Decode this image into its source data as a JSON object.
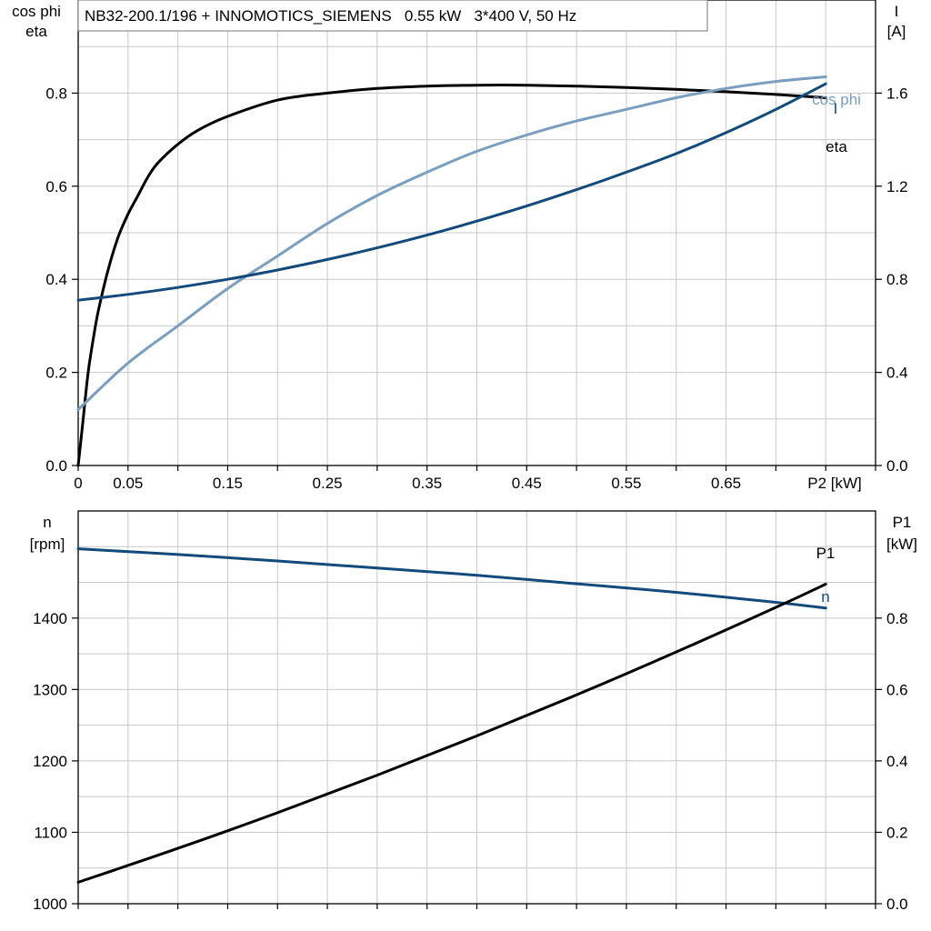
{
  "header": {
    "title": "NB32-200.1/196 + INNOMOTICS_SIEMENS   0.55 kW   3*400 V, 50 Hz"
  },
  "colors": {
    "eta": "#000000",
    "cos_phi": "#7a9ebf",
    "I": "#134a7c",
    "n": "#134a7c",
    "P1": "#000000"
  },
  "chart_data": [
    {
      "type": "line",
      "panel": "top",
      "xlabel": "P2 [kW]",
      "ylabel_left": [
        "cos phi",
        "eta"
      ],
      "ylabel_right": [
        "I",
        "[A]"
      ],
      "x_tick_labels": [
        "0",
        "0.05",
        "0.15",
        "0.25",
        "0.35",
        "0.45",
        "0.55",
        "0.65"
      ],
      "x_ticks": [
        0,
        0.05,
        0.15,
        0.25,
        0.35,
        0.45,
        0.55,
        0.65
      ],
      "xlim": [
        0,
        0.8
      ],
      "ylim_left": [
        0,
        1.0
      ],
      "y_ticks_left": [
        {
          "v": 0.0,
          "label": "0.0"
        },
        {
          "v": 0.2,
          "label": "0.2"
        },
        {
          "v": 0.4,
          "label": "0.4"
        },
        {
          "v": 0.6,
          "label": "0.6"
        },
        {
          "v": 0.8,
          "label": "0.8"
        }
      ],
      "ylim_right": [
        0,
        2.0
      ],
      "y_ticks_right": [
        {
          "v": 0.0,
          "label": "0.0"
        },
        {
          "v": 0.4,
          "label": "0.4"
        },
        {
          "v": 0.8,
          "label": "0.8"
        },
        {
          "v": 1.2,
          "label": "1.2"
        },
        {
          "v": 1.6,
          "label": "1.6"
        }
      ],
      "grid": true,
      "series": [
        {
          "name": "eta",
          "axis": "left",
          "x": [
            0,
            0.005,
            0.01,
            0.015,
            0.02,
            0.03,
            0.04,
            0.05,
            0.06,
            0.07,
            0.08,
            0.1,
            0.12,
            0.15,
            0.2,
            0.25,
            0.3,
            0.35,
            0.4,
            0.45,
            0.5,
            0.55,
            0.6,
            0.65,
            0.7,
            0.75
          ],
          "y": [
            0,
            0.1,
            0.2,
            0.27,
            0.33,
            0.42,
            0.49,
            0.54,
            0.58,
            0.62,
            0.65,
            0.69,
            0.72,
            0.75,
            0.785,
            0.8,
            0.81,
            0.815,
            0.817,
            0.817,
            0.815,
            0.812,
            0.808,
            0.803,
            0.797,
            0.79
          ]
        },
        {
          "name": "cos phi",
          "axis": "left",
          "x": [
            0,
            0.05,
            0.1,
            0.15,
            0.2,
            0.25,
            0.3,
            0.35,
            0.4,
            0.45,
            0.5,
            0.55,
            0.6,
            0.65,
            0.7,
            0.75
          ],
          "y": [
            0.12,
            0.22,
            0.3,
            0.38,
            0.45,
            0.52,
            0.58,
            0.63,
            0.675,
            0.71,
            0.74,
            0.765,
            0.79,
            0.81,
            0.825,
            0.835
          ]
        },
        {
          "name": "I",
          "axis": "right",
          "x": [
            0,
            0.05,
            0.1,
            0.15,
            0.2,
            0.25,
            0.3,
            0.35,
            0.4,
            0.45,
            0.5,
            0.55,
            0.6,
            0.65,
            0.7,
            0.75
          ],
          "y": [
            0.71,
            0.735,
            0.765,
            0.8,
            0.84,
            0.885,
            0.935,
            0.99,
            1.05,
            1.115,
            1.185,
            1.26,
            1.34,
            1.43,
            1.53,
            1.64
          ]
        }
      ]
    },
    {
      "type": "line",
      "panel": "bottom",
      "ylabel_left": [
        "n",
        "[rpm]"
      ],
      "ylabel_right": [
        "P1",
        "[kW]"
      ],
      "xlim": [
        0,
        0.8
      ],
      "ylim_left": [
        1000,
        1550
      ],
      "y_ticks_left": [
        {
          "v": 1000,
          "label": "1000"
        },
        {
          "v": 1100,
          "label": "1100"
        },
        {
          "v": 1200,
          "label": "1200"
        },
        {
          "v": 1300,
          "label": "1300"
        },
        {
          "v": 1400,
          "label": "1400"
        }
      ],
      "ylim_right": [
        0,
        1.1
      ],
      "y_ticks_right": [
        {
          "v": 0.0,
          "label": "0.0"
        },
        {
          "v": 0.2,
          "label": "0.2"
        },
        {
          "v": 0.4,
          "label": "0.4"
        },
        {
          "v": 0.6,
          "label": "0.6"
        },
        {
          "v": 0.8,
          "label": "0.8"
        }
      ],
      "grid": true,
      "series": [
        {
          "name": "n",
          "axis": "left",
          "x": [
            0,
            0.1,
            0.2,
            0.3,
            0.4,
            0.5,
            0.6,
            0.7,
            0.75
          ],
          "y": [
            1497,
            1489,
            1480,
            1470,
            1460,
            1448,
            1436,
            1422,
            1414
          ]
        },
        {
          "name": "P1",
          "axis": "right",
          "x": [
            0,
            0.1,
            0.2,
            0.3,
            0.4,
            0.5,
            0.6,
            0.7,
            0.75
          ],
          "y": [
            0.06,
            0.155,
            0.255,
            0.36,
            0.47,
            0.585,
            0.705,
            0.83,
            0.895
          ]
        }
      ]
    }
  ]
}
